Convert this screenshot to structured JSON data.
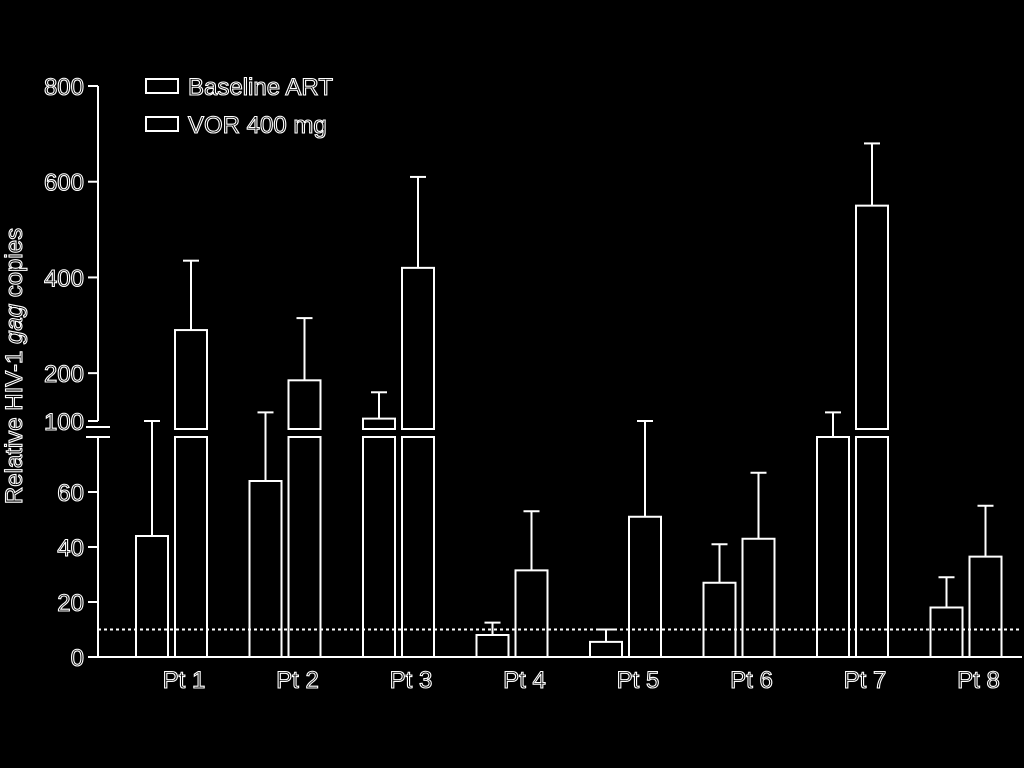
{
  "chart_data": {
    "type": "bar",
    "title": "",
    "xlabel": "",
    "ylabel_prefix": "Relative HIV-1 ",
    "ylabel_italic": "gag",
    "ylabel_suffix": " copies",
    "categories": [
      "Pt 1",
      "Pt 2",
      "Pt 3",
      "Pt 4",
      "Pt 5",
      "Pt 6",
      "Pt 7",
      "Pt 8"
    ],
    "series": [
      {
        "name": "Baseline ART",
        "values": [
          44,
          64,
          105,
          8,
          5.5,
          27,
          80,
          18
        ],
        "errors": [
          97,
          118,
          160,
          12.5,
          10,
          41,
          118,
          29
        ]
      },
      {
        "name": "VOR 400 mg",
        "values": [
          290,
          185,
          420,
          31.5,
          51,
          43,
          550,
          36.5
        ],
        "errors": [
          435,
          315,
          610,
          53,
          97,
          67,
          680,
          55
        ]
      }
    ],
    "axis": {
      "broken": true,
      "lower_range": [
        0,
        80
      ],
      "upper_range": [
        100,
        800
      ],
      "lower_ticks": [
        "0",
        "20",
        "40",
        "60"
      ],
      "upper_ticks": [
        "100",
        "200",
        "400",
        "600",
        "800"
      ],
      "lower_tick_values": [
        0,
        20,
        40,
        60
      ],
      "upper_tick_values": [
        100,
        200,
        400,
        600,
        800
      ]
    },
    "reference_line": {
      "value": 10,
      "style": "dashed"
    },
    "legend": {
      "placement": "top-left"
    },
    "colors": {
      "background": "#000000",
      "stroke": "#ffffff"
    }
  }
}
